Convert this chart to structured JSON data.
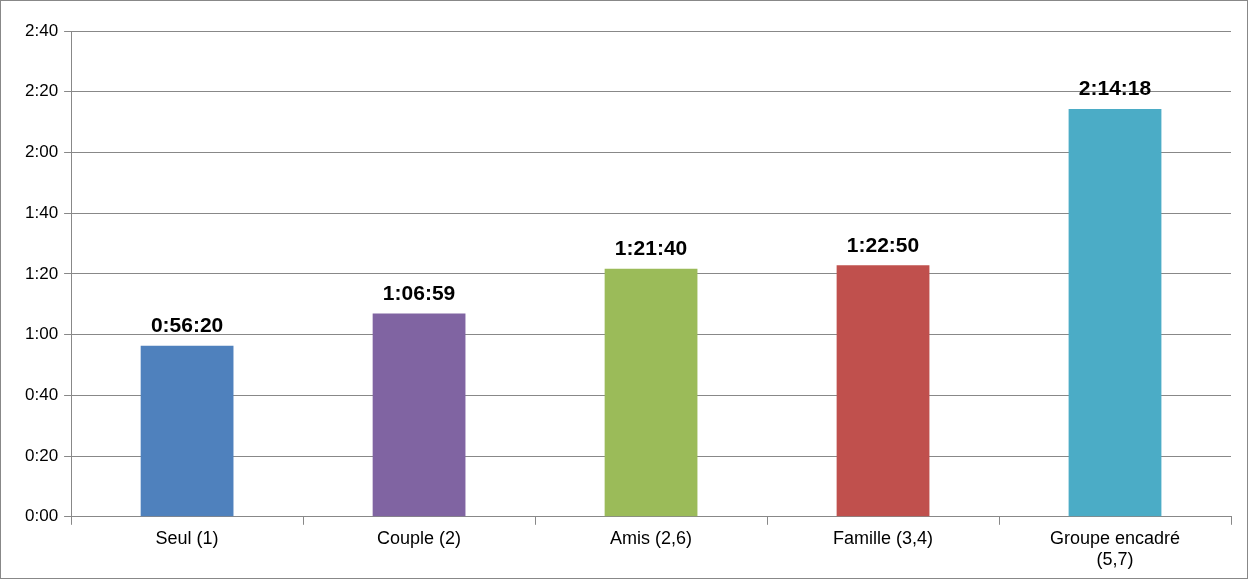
{
  "chart_data": {
    "type": "bar",
    "categories": [
      "Seul (1)",
      "Couple (2)",
      "Amis (2,6)",
      "Famille (3,4)",
      "Groupe encadré (5,7)"
    ],
    "values": [
      56.33,
      66.98,
      81.67,
      82.83,
      134.3
    ],
    "colors": [
      "#4f81bd",
      "#8064a2",
      "#9bbb59",
      "#c0504d",
      "#4bacc6"
    ],
    "value_labels": [
      "0:56:20",
      "1:06:59",
      "1:21:40",
      "1:22:50",
      "2:14:18"
    ],
    "ylim": [
      0,
      160
    ],
    "yticks": [
      {
        "value": 0,
        "label": "0:00"
      },
      {
        "value": 20,
        "label": "0:20"
      },
      {
        "value": 40,
        "label": "0:40"
      },
      {
        "value": 60,
        "label": "1:00"
      },
      {
        "value": 80,
        "label": "1:20"
      },
      {
        "value": 100,
        "label": "1:40"
      },
      {
        "value": 120,
        "label": "2:00"
      },
      {
        "value": 140,
        "label": "2:20"
      },
      {
        "value": 160,
        "label": "2:40"
      }
    ],
    "grid": "y",
    "legend": false
  }
}
